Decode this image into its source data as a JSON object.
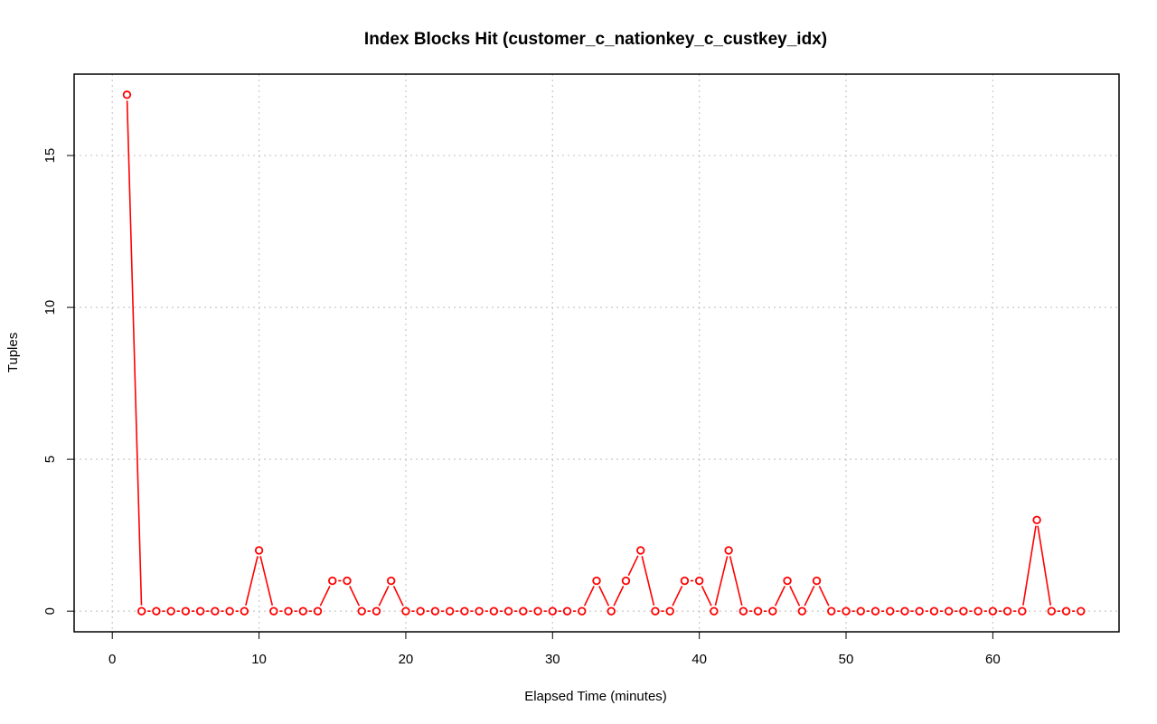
{
  "chart_data": {
    "type": "line",
    "title": "Index Blocks Hit (customer_c_nationkey_c_custkey_idx)",
    "xlabel": "Elapsed Time (minutes)",
    "ylabel": "Tuples",
    "xlim": [
      -2.6,
      68.6
    ],
    "ylim": [
      -0.68,
      17.68
    ],
    "x_ticks": [
      0,
      10,
      20,
      30,
      40,
      50,
      60
    ],
    "y_ticks": [
      0,
      5,
      10,
      15
    ],
    "grid": true,
    "series": [
      {
        "name": "Tuples",
        "color": "#ff0000",
        "x": [
          1,
          2,
          3,
          4,
          5,
          6,
          7,
          8,
          9,
          10,
          11,
          12,
          13,
          14,
          15,
          16,
          17,
          18,
          19,
          20,
          21,
          22,
          23,
          24,
          25,
          26,
          27,
          28,
          29,
          30,
          31,
          32,
          33,
          34,
          35,
          36,
          37,
          38,
          39,
          40,
          41,
          42,
          43,
          44,
          45,
          46,
          47,
          48,
          49,
          50,
          51,
          52,
          53,
          54,
          55,
          56,
          57,
          58,
          59,
          60,
          61,
          62,
          63,
          64,
          65,
          66
        ],
        "values": [
          17,
          0,
          0,
          0,
          0,
          0,
          0,
          0,
          0,
          2,
          0,
          0,
          0,
          0,
          1,
          1,
          0,
          0,
          1,
          0,
          0,
          0,
          0,
          0,
          0,
          0,
          0,
          0,
          0,
          0,
          0,
          0,
          1,
          0,
          1,
          2,
          0,
          0,
          1,
          1,
          0,
          2,
          0,
          0,
          0,
          1,
          0,
          1,
          0,
          0,
          0,
          0,
          0,
          0,
          0,
          0,
          0,
          0,
          0,
          0,
          0,
          0,
          3,
          0,
          0,
          0
        ]
      }
    ]
  }
}
